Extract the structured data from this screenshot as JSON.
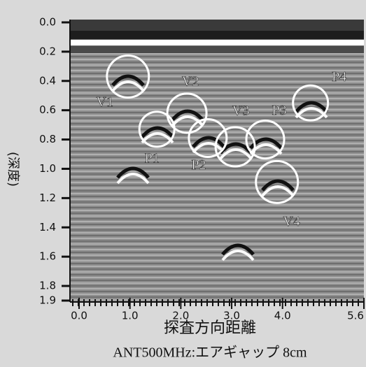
{
  "chart_data": {
    "type": "radargram",
    "x_label": "探査方向距離",
    "subtitle": "ANT500MHz:エアギャップ 8cm",
    "y_label": "(深度)",
    "xlim": [
      0,
      5.6
    ],
    "ylim": [
      1.9,
      0
    ],
    "xticks": [
      {
        "value": 0,
        "label": "0.0"
      },
      {
        "value": 1,
        "label": "1.0"
      },
      {
        "value": 2,
        "label": "2.0"
      },
      {
        "value": 3,
        "label": "3.0"
      },
      {
        "value": 4,
        "label": "4.0"
      },
      5.6
    ],
    "yticks": [
      {
        "value": 0,
        "label": "0.0"
      },
      0.2,
      0.4,
      0.6,
      0.8,
      {
        "value": 1,
        "label": "1.0"
      },
      1.2,
      1.4,
      1.6,
      1.8,
      1.9
    ],
    "annotations": [
      {
        "label": "V1",
        "x": 0.96,
        "y": 0.37
      },
      {
        "label": "V2",
        "x": 2.12,
        "y": 0.62
      },
      {
        "label": "P1",
        "x": 1.53,
        "y": 0.73
      },
      {
        "label": "P2",
        "x": 2.53,
        "y": 0.79
      },
      {
        "label": "V3",
        "x": 3.07,
        "y": 0.85
      },
      {
        "label": "P3",
        "x": 3.66,
        "y": 0.8
      },
      {
        "label": "P4",
        "x": 4.55,
        "y": 0.55
      },
      {
        "label": "V4",
        "x": 3.89,
        "y": 1.09
      }
    ]
  }
}
